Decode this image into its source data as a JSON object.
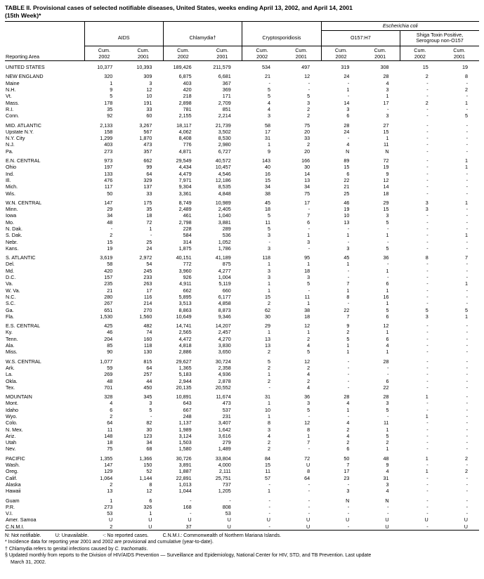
{
  "title": {
    "line1": "TABLE II. Provisional cases of selected notifiable diseases, United States, weeks ending April 13, 2002, and April 14, 2001",
    "line2": "(15th Week)*"
  },
  "header": {
    "reporting_area": "Reporting Area",
    "ecoli": "Escherichia coli",
    "groups": [
      {
        "label": "AIDS"
      },
      {
        "label": "Chlamydia†"
      },
      {
        "label": "Cryptosporidiosis"
      },
      {
        "label": "O157:H7"
      },
      {
        "label": "Shiga Toxin Positive,",
        "label2": "Serogroup non-O157"
      }
    ],
    "cum": "Cum.",
    "years": [
      "2002",
      "2001"
    ]
  },
  "table": {
    "groups": [
      {
        "rows": [
          [
            "UNITED STATES",
            "10,377",
            "10,393",
            "189,426",
            "211,579",
            "534",
            "497",
            "319",
            "308",
            "15",
            "19"
          ]
        ]
      },
      {
        "rows": [
          [
            "NEW ENGLAND",
            "320",
            "309",
            "6,875",
            "6,681",
            "21",
            "12",
            "24",
            "28",
            "2",
            "8"
          ],
          [
            "Maine",
            "1",
            "3",
            "403",
            "367",
            "-",
            "-",
            "-",
            "4",
            "-",
            "-"
          ],
          [
            "N.H.",
            "9",
            "12",
            "420",
            "369",
            "5",
            "-",
            "1",
            "3",
            "-",
            "2"
          ],
          [
            "Vt.",
            "5",
            "10",
            "218",
            "171",
            "5",
            "5",
            "-",
            "1",
            "-",
            "-"
          ],
          [
            "Mass.",
            "178",
            "191",
            "2,898",
            "2,709",
            "4",
            "3",
            "14",
            "17",
            "2",
            "1"
          ],
          [
            "R.I.",
            "35",
            "33",
            "781",
            "851",
            "4",
            "2",
            "3",
            "-",
            "-",
            "-"
          ],
          [
            "Conn.",
            "92",
            "60",
            "2,155",
            "2,214",
            "3",
            "2",
            "6",
            "3",
            "-",
            "5"
          ]
        ]
      },
      {
        "rows": [
          [
            "MID. ATLANTIC",
            "2,133",
            "3,267",
            "18,117",
            "21,739",
            "58",
            "75",
            "28",
            "27",
            "-",
            "-"
          ],
          [
            "Upstate N.Y.",
            "158",
            "567",
            "4,062",
            "3,502",
            "17",
            "20",
            "24",
            "15",
            "-",
            "-"
          ],
          [
            "N.Y. City",
            "1,299",
            "1,870",
            "8,408",
            "8,530",
            "31",
            "33",
            "-",
            "1",
            "-",
            "-"
          ],
          [
            "N.J.",
            "403",
            "473",
            "776",
            "2,980",
            "1",
            "2",
            "4",
            "11",
            "-",
            "-"
          ],
          [
            "Pa.",
            "273",
            "357",
            "4,871",
            "6,727",
            "9",
            "20",
            "N",
            "N",
            "-",
            "-"
          ]
        ]
      },
      {
        "rows": [
          [
            "E.N. CENTRAL",
            "973",
            "662",
            "29,549",
            "40,572",
            "143",
            "166",
            "89",
            "72",
            "-",
            "1"
          ],
          [
            "Ohio",
            "197",
            "99",
            "4,434",
            "10,457",
            "40",
            "30",
            "15",
            "19",
            "-",
            "1"
          ],
          [
            "Ind.",
            "133",
            "64",
            "4,479",
            "4,546",
            "16",
            "14",
            "6",
            "9",
            "-",
            "-"
          ],
          [
            "Ill.",
            "476",
            "329",
            "7,971",
            "12,186",
            "15",
            "13",
            "22",
            "12",
            "-",
            "-"
          ],
          [
            "Mich.",
            "117",
            "137",
            "9,304",
            "8,535",
            "34",
            "34",
            "21",
            "14",
            "-",
            "-"
          ],
          [
            "Wis.",
            "50",
            "33",
            "3,361",
            "4,848",
            "38",
            "75",
            "25",
            "18",
            "-",
            "-"
          ]
        ]
      },
      {
        "rows": [
          [
            "W.N. CENTRAL",
            "147",
            "175",
            "8,749",
            "10,989",
            "45",
            "17",
            "46",
            "29",
            "3",
            "1"
          ],
          [
            "Minn.",
            "29",
            "35",
            "2,489",
            "2,405",
            "18",
            "-",
            "19",
            "15",
            "3",
            "-"
          ],
          [
            "Iowa",
            "34",
            "18",
            "461",
            "1,040",
            "5",
            "7",
            "10",
            "3",
            "-",
            "-"
          ],
          [
            "Mo.",
            "48",
            "72",
            "2,798",
            "3,881",
            "11",
            "6",
            "13",
            "5",
            "-",
            "-"
          ],
          [
            "N. Dak.",
            "-",
            "1",
            "228",
            "289",
            "5",
            "-",
            "-",
            "-",
            "-",
            "-"
          ],
          [
            "S. Dak.",
            "2",
            "-",
            "584",
            "536",
            "3",
            "1",
            "1",
            "1",
            "-",
            "1"
          ],
          [
            "Nebr.",
            "15",
            "25",
            "314",
            "1,052",
            "-",
            "3",
            "-",
            "-",
            "-",
            "-"
          ],
          [
            "Kans.",
            "19",
            "24",
            "1,875",
            "1,786",
            "3",
            "-",
            "3",
            "5",
            "-",
            "-"
          ]
        ]
      },
      {
        "rows": [
          [
            "S. ATLANTIC",
            "3,619",
            "2,972",
            "40,151",
            "41,189",
            "118",
            "95",
            "45",
            "36",
            "8",
            "7"
          ],
          [
            "Del.",
            "58",
            "54",
            "772",
            "875",
            "1",
            "1",
            "1",
            "-",
            "-",
            "-"
          ],
          [
            "Md.",
            "420",
            "245",
            "3,960",
            "4,277",
            "3",
            "18",
            "-",
            "1",
            "-",
            "-"
          ],
          [
            "D.C.",
            "157",
            "233",
            "926",
            "1,004",
            "3",
            "3",
            "-",
            "-",
            "-",
            "-"
          ],
          [
            "Va.",
            "235",
            "263",
            "4,911",
            "5,119",
            "1",
            "5",
            "7",
            "6",
            "-",
            "1"
          ],
          [
            "W. Va.",
            "21",
            "17",
            "662",
            "660",
            "1",
            "-",
            "1",
            "1",
            "-",
            "-"
          ],
          [
            "N.C.",
            "280",
            "116",
            "5,895",
            "6,177",
            "15",
            "11",
            "8",
            "16",
            "-",
            "-"
          ],
          [
            "S.C.",
            "267",
            "214",
            "3,513",
            "4,858",
            "2",
            "1",
            "-",
            "1",
            "-",
            "-"
          ],
          [
            "Ga.",
            "651",
            "270",
            "8,863",
            "8,873",
            "62",
            "38",
            "22",
            "5",
            "5",
            "5"
          ],
          [
            "Fla.",
            "1,530",
            "1,560",
            "10,649",
            "9,346",
            "30",
            "18",
            "7",
            "6",
            "3",
            "1"
          ]
        ]
      },
      {
        "rows": [
          [
            "E.S. CENTRAL",
            "425",
            "482",
            "14,741",
            "14,207",
            "29",
            "12",
            "9",
            "12",
            "-",
            "-"
          ],
          [
            "Ky.",
            "46",
            "74",
            "2,565",
            "2,457",
            "1",
            "1",
            "2",
            "1",
            "-",
            "-"
          ],
          [
            "Tenn.",
            "204",
            "160",
            "4,472",
            "4,270",
            "13",
            "2",
            "5",
            "6",
            "-",
            "-"
          ],
          [
            "Ala.",
            "85",
            "118",
            "4,818",
            "3,830",
            "13",
            "4",
            "1",
            "4",
            "-",
            "-"
          ],
          [
            "Miss.",
            "90",
            "130",
            "2,886",
            "3,650",
            "2",
            "5",
            "1",
            "1",
            "-",
            "-"
          ]
        ]
      },
      {
        "rows": [
          [
            "W.S. CENTRAL",
            "1,077",
            "815",
            "29,627",
            "30,724",
            "5",
            "12",
            "-",
            "28",
            "-",
            "-"
          ],
          [
            "Ark.",
            "59",
            "64",
            "1,365",
            "2,358",
            "2",
            "2",
            "-",
            "-",
            "-",
            "-"
          ],
          [
            "La.",
            "269",
            "257",
            "5,183",
            "4,936",
            "1",
            "4",
            "-",
            "-",
            "-",
            "-"
          ],
          [
            "Okla.",
            "48",
            "44",
            "2,944",
            "2,878",
            "2",
            "2",
            "-",
            "6",
            "-",
            "-"
          ],
          [
            "Tex.",
            "701",
            "450",
            "20,135",
            "20,552",
            "-",
            "4",
            "-",
            "22",
            "-",
            "-"
          ]
        ]
      },
      {
        "rows": [
          [
            "MOUNTAIN",
            "328",
            "345",
            "10,891",
            "11,674",
            "31",
            "36",
            "28",
            "28",
            "1",
            "-"
          ],
          [
            "Mont.",
            "4",
            "3",
            "643",
            "473",
            "1",
            "3",
            "4",
            "3",
            "-",
            "-"
          ],
          [
            "Idaho",
            "6",
            "5",
            "667",
            "537",
            "10",
            "5",
            "1",
            "5",
            "-",
            "-"
          ],
          [
            "Wyo.",
            "2",
            "-",
            "248",
            "231",
            "1",
            "-",
            "-",
            "-",
            "1",
            "-"
          ],
          [
            "Colo.",
            "64",
            "82",
            "1,137",
            "3,407",
            "8",
            "12",
            "4",
            "11",
            "-",
            "-"
          ],
          [
            "N. Mex.",
            "11",
            "30",
            "1,989",
            "1,642",
            "3",
            "8",
            "2",
            "1",
            "-",
            "-"
          ],
          [
            "Ariz.",
            "148",
            "123",
            "3,124",
            "3,616",
            "4",
            "1",
            "4",
            "5",
            "-",
            "-"
          ],
          [
            "Utah",
            "18",
            "34",
            "1,503",
            "279",
            "2",
            "7",
            "2",
            "2",
            "-",
            "-"
          ],
          [
            "Nev.",
            "75",
            "68",
            "1,580",
            "1,489",
            "2",
            "-",
            "6",
            "1",
            "-",
            "-"
          ]
        ]
      },
      {
        "rows": [
          [
            "PACIFIC",
            "1,355",
            "1,366",
            "30,726",
            "33,804",
            "84",
            "72",
            "50",
            "48",
            "1",
            "2"
          ],
          [
            "Wash.",
            "147",
            "150",
            "3,891",
            "4,000",
            "15",
            "U",
            "7",
            "9",
            "-",
            "-"
          ],
          [
            "Oreg.",
            "129",
            "52",
            "1,887",
            "2,111",
            "11",
            "8",
            "17",
            "4",
            "1",
            "2"
          ],
          [
            "Calif.",
            "1,064",
            "1,144",
            "22,891",
            "25,751",
            "57",
            "64",
            "23",
            "31",
            "-",
            "-"
          ],
          [
            "Alaska",
            "2",
            "8",
            "1,013",
            "737",
            "-",
            "-",
            "-",
            "3",
            "-",
            "-"
          ],
          [
            "Hawaii",
            "13",
            "12",
            "1,044",
            "1,205",
            "1",
            "-",
            "3",
            "4",
            "-",
            "-"
          ]
        ]
      },
      {
        "rows": [
          [
            "Guam",
            "1",
            "6",
            "-",
            "-",
            "-",
            "-",
            "N",
            "N",
            "-",
            "-"
          ],
          [
            "P.R.",
            "273",
            "326",
            "168",
            "808",
            "-",
            "-",
            "-",
            "-",
            "-",
            "-"
          ],
          [
            "V.I.",
            "53",
            "1",
            "-",
            "53",
            "-",
            "-",
            "-",
            "-",
            "-",
            "-"
          ],
          [
            "Amer. Samoa",
            "U",
            "U",
            "U",
            "U",
            "U",
            "U",
            "U",
            "U",
            "U",
            "U"
          ],
          [
            "C.N.M.I.",
            "2",
            "U",
            "37",
            "U",
            "-",
            "U",
            "-",
            "U",
            "-",
            "U"
          ]
        ]
      }
    ]
  },
  "footnotes": {
    "legend_items": [
      "N: Not notifiable.",
      "U: Unavailable.",
      "-: No reported cases.",
      "C.N.M.I.: Commonwealth of Northern Mariana Islands."
    ],
    "note1": "* Incidence data for reporting year 2001 and 2002 are provisional and cumulative (year-to-date).",
    "note2_pre": "† Chlamydia refers to genital infections caused by ",
    "note2_italic": "C. trachomatis",
    "note2_post": ".",
    "note3_line1": "§ Updated monthly from reports to the Division of HIV/AIDS Prevention — Surveillance and Epidemiology, National Center for HIV, STD, and TB Prevention. Last update",
    "note3_line2": "March 31, 2002."
  }
}
